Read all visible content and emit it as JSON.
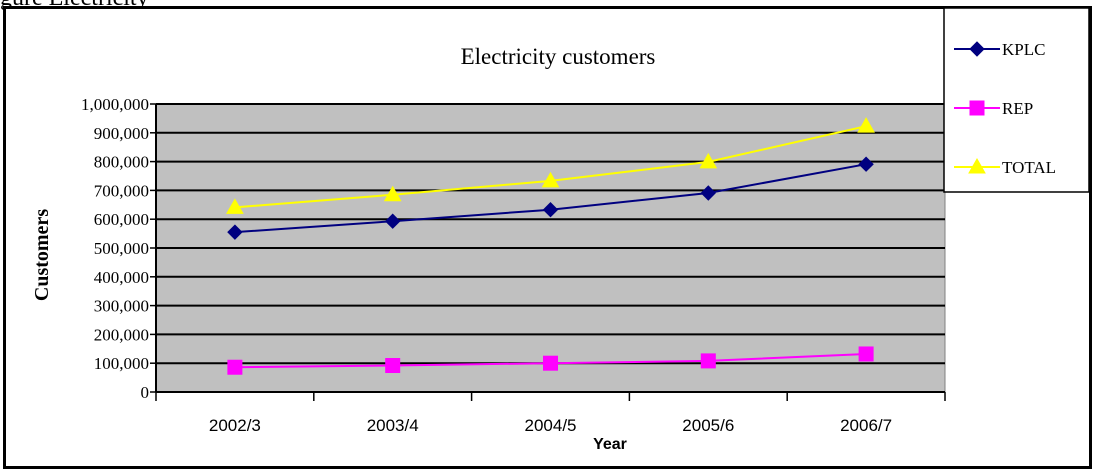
{
  "page_top_text": "gure  Electricity",
  "chart_data": {
    "type": "line",
    "title": "Electricity customers",
    "xlabel": "Year",
    "ylabel": "Customers",
    "categories": [
      "2002/3",
      "2003/4",
      "2004/5",
      "2005/6",
      "2006/7"
    ],
    "ylim": [
      0,
      1000000
    ],
    "y_ticks": [
      "0",
      "100,000",
      "200,000",
      "300,000",
      "400,000",
      "500,000",
      "600,000",
      "700,000",
      "800,000",
      "900,000",
      "1,000,000"
    ],
    "grid": true,
    "plot_background": "#C0C0C0",
    "legend_position": "right",
    "series": [
      {
        "name": "KPLC",
        "values": [
          555000,
          593000,
          633000,
          691000,
          791000
        ],
        "color": "#000080",
        "marker": "diamond"
      },
      {
        "name": "REP",
        "values": [
          86000,
          92000,
          100000,
          108000,
          132000
        ],
        "color": "#FF00FF",
        "marker": "square"
      },
      {
        "name": "TOTAL",
        "values": [
          641000,
          685000,
          733000,
          799000,
          923000
        ],
        "color": "#FFFF00",
        "marker": "triangle"
      }
    ]
  }
}
